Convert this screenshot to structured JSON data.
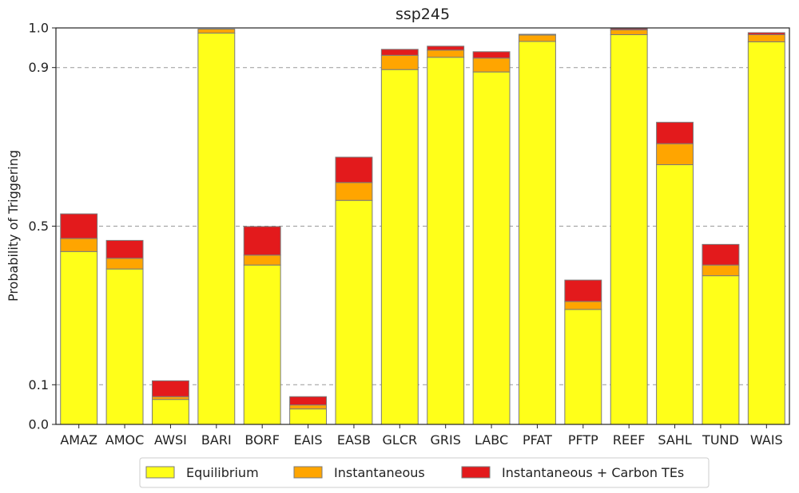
{
  "chart_data": {
    "type": "bar",
    "stacked": true,
    "title": "ssp245",
    "xlabel": "",
    "ylabel": "Probability of Triggering",
    "ylim": [
      0.0,
      1.0
    ],
    "yticks": [
      0.0,
      0.1,
      0.5,
      0.9,
      1.0
    ],
    "ytick_labels": [
      "0.0",
      "0.1",
      "0.5",
      "0.9",
      "1.0"
    ],
    "grid": "dashed horizontal lines at y ticks",
    "legend_position": "bottom-center",
    "categories": [
      "AMAZ",
      "AMOC",
      "AWSI",
      "BARI",
      "BORF",
      "EAIS",
      "EASB",
      "GLCR",
      "GRIS",
      "LABC",
      "PFAT",
      "PFTP",
      "REEF",
      "SAHL",
      "TUND",
      "WAIS"
    ],
    "series": [
      {
        "name": "Equilibrium",
        "color": "#ffff19",
        "values": [
          0.436,
          0.392,
          0.063,
          0.987,
          0.402,
          0.039,
          0.565,
          0.895,
          0.926,
          0.889,
          0.966,
          0.29,
          0.983,
          0.655,
          0.375,
          0.965
        ]
      },
      {
        "name": "Instantaneous",
        "color": "#ffa500",
        "values": [
          0.033,
          0.027,
          0.007,
          0.01,
          0.025,
          0.01,
          0.045,
          0.036,
          0.018,
          0.035,
          0.016,
          0.02,
          0.012,
          0.053,
          0.027,
          0.018
        ]
      },
      {
        "name": "Instantaneous + Carbon TEs",
        "color": "#e31a1c",
        "values": [
          0.062,
          0.045,
          0.04,
          0.0,
          0.072,
          0.021,
          0.064,
          0.015,
          0.01,
          0.016,
          0.002,
          0.054,
          0.003,
          0.054,
          0.052,
          0.005
        ]
      }
    ]
  }
}
